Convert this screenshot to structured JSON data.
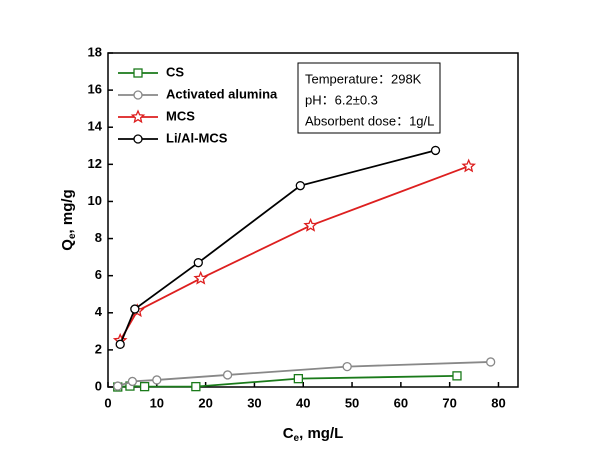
{
  "chart_data": {
    "type": "line",
    "x_label": {
      "main": "C",
      "sub": "e",
      "rest": ", mg/L"
    },
    "y_label": {
      "main": "Q",
      "sub": "e",
      "rest": ", mg/g"
    },
    "xlim": [
      0,
      84
    ],
    "xticks": [
      0,
      10,
      20,
      30,
      40,
      50,
      60,
      70,
      80
    ],
    "ylim": [
      0,
      18
    ],
    "yticks": [
      0,
      2,
      4,
      6,
      8,
      10,
      12,
      14,
      16,
      18
    ],
    "legend": "upper left",
    "annotations": [
      "Temperature：298K",
      "pH：6.2±0.3",
      "Absorbent dose：1g/L"
    ],
    "series": [
      {
        "name": "CS",
        "color": "#1a7a1a",
        "marker": "square",
        "x": [
          2,
          4.5,
          7.5,
          18,
          39,
          71.5
        ],
        "values": [
          0,
          0.05,
          0.02,
          0.02,
          0.45,
          0.6
        ]
      },
      {
        "name": "Activated alumina",
        "color": "#888888",
        "marker": "circle",
        "x": [
          2,
          5,
          10,
          24.5,
          49,
          78.4
        ],
        "values": [
          0.05,
          0.3,
          0.38,
          0.65,
          1.1,
          1.35
        ]
      },
      {
        "name": "MCS",
        "color": "#dd1f1f",
        "marker": "star",
        "x": [
          2.5,
          6,
          19,
          41.5,
          73.9
        ],
        "values": [
          2.5,
          4.1,
          5.85,
          8.7,
          11.9
        ]
      },
      {
        "name": "Li/Al-MCS",
        "color": "#000000",
        "marker": "circle",
        "x": [
          2.5,
          5.5,
          18.5,
          39.4,
          67.1
        ],
        "values": [
          2.3,
          4.2,
          6.7,
          10.85,
          12.75
        ]
      }
    ]
  }
}
